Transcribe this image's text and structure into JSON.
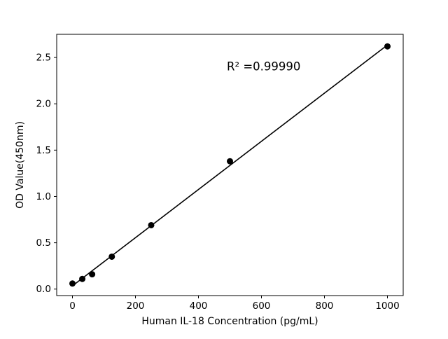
{
  "figure": {
    "background_color": "#ffffff"
  },
  "chart_data": {
    "type": "scatter",
    "title": "",
    "xlabel": "Human IL-18 Concentration (pg/mL)",
    "ylabel": "OD Value(450nm)",
    "x": [
      0,
      31.25,
      62.5,
      125,
      250,
      500,
      1000
    ],
    "y": [
      0.06,
      0.11,
      0.16,
      0.35,
      0.69,
      1.38,
      2.62
    ],
    "fit_line": {
      "slope": 0.0026,
      "intercept": 0.035,
      "x_start": 0,
      "x_end": 1000
    },
    "annotation": {
      "text": "R² =0.99990",
      "x": 490,
      "y": 2.36
    },
    "xlim": [
      -50,
      1050
    ],
    "ylim": [
      -0.07,
      2.75
    ],
    "xticks": [
      0,
      200,
      400,
      600,
      800,
      1000
    ],
    "xtick_labels": [
      "0",
      "200",
      "400",
      "600",
      "800",
      "1000"
    ],
    "yticks": [
      0.0,
      0.5,
      1.0,
      1.5,
      2.0,
      2.5
    ],
    "ytick_labels": [
      "0.0",
      "0.5",
      "1.0",
      "1.5",
      "2.0",
      "2.5"
    ],
    "grid": false,
    "legend": "none",
    "marker_color": "#000000",
    "line_color": "#000000",
    "axis_color": "#000000"
  }
}
